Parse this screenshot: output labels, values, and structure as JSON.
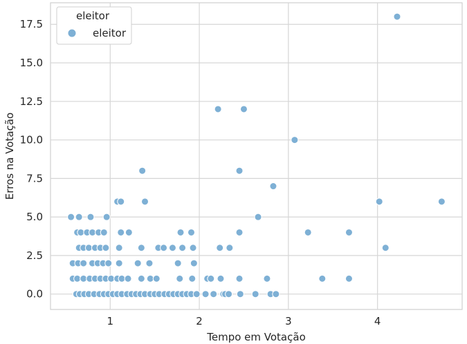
{
  "chart_data": {
    "type": "scatter",
    "xlabel": "Tempo em Votação",
    "ylabel": "Erros na Votação",
    "xlim": [
      0.33,
      4.95
    ],
    "ylim": [
      -1.0,
      18.9
    ],
    "x_ticks": [
      1,
      2,
      3,
      4
    ],
    "x_tick_labels": [
      "1",
      "2",
      "3",
      "4"
    ],
    "y_ticks": [
      0.0,
      2.5,
      5.0,
      7.5,
      10.0,
      12.5,
      15.0,
      17.5
    ],
    "y_tick_labels": [
      "0.0",
      "2.5",
      "5.0",
      "7.5",
      "10.0",
      "12.5",
      "15.0",
      "17.5"
    ],
    "grid": true,
    "legend": {
      "title": "eleitor",
      "placement": "top-left",
      "entries": [
        {
          "label": "eleitor",
          "color": "#7eb0d5"
        }
      ]
    },
    "series": [
      {
        "name": "eleitor",
        "color": "#7eb0d5",
        "points": [
          {
            "x": 0.62,
            "y": 0.0
          },
          {
            "x": 0.66,
            "y": 0.0
          },
          {
            "x": 0.71,
            "y": 0.0
          },
          {
            "x": 0.76,
            "y": 0.0
          },
          {
            "x": 0.82,
            "y": 0.0
          },
          {
            "x": 0.88,
            "y": 0.0
          },
          {
            "x": 0.93,
            "y": 0.0
          },
          {
            "x": 0.98,
            "y": 0.0
          },
          {
            "x": 1.03,
            "y": 0.0
          },
          {
            "x": 1.08,
            "y": 0.0
          },
          {
            "x": 1.13,
            "y": 0.0
          },
          {
            "x": 1.19,
            "y": 0.0
          },
          {
            "x": 1.24,
            "y": 0.0
          },
          {
            "x": 1.29,
            "y": 0.0
          },
          {
            "x": 1.34,
            "y": 0.0
          },
          {
            "x": 1.39,
            "y": 0.0
          },
          {
            "x": 1.45,
            "y": 0.0
          },
          {
            "x": 1.5,
            "y": 0.0
          },
          {
            "x": 1.55,
            "y": 0.0
          },
          {
            "x": 1.61,
            "y": 0.0
          },
          {
            "x": 1.66,
            "y": 0.0
          },
          {
            "x": 1.71,
            "y": 0.0
          },
          {
            "x": 1.76,
            "y": 0.0
          },
          {
            "x": 1.81,
            "y": 0.0
          },
          {
            "x": 1.86,
            "y": 0.0
          },
          {
            "x": 1.91,
            "y": 0.0
          },
          {
            "x": 1.97,
            "y": 0.0
          },
          {
            "x": 2.07,
            "y": 0.0
          },
          {
            "x": 2.16,
            "y": 0.0
          },
          {
            "x": 2.27,
            "y": 0.0
          },
          {
            "x": 2.29,
            "y": 0.0
          },
          {
            "x": 2.33,
            "y": 0.0
          },
          {
            "x": 2.46,
            "y": 0.0
          },
          {
            "x": 2.63,
            "y": 0.0
          },
          {
            "x": 2.8,
            "y": 0.0
          },
          {
            "x": 2.86,
            "y": 0.0
          },
          {
            "x": 0.58,
            "y": 1.0
          },
          {
            "x": 0.63,
            "y": 1.0
          },
          {
            "x": 0.7,
            "y": 1.0
          },
          {
            "x": 0.77,
            "y": 1.0
          },
          {
            "x": 0.83,
            "y": 1.0
          },
          {
            "x": 0.89,
            "y": 1.0
          },
          {
            "x": 0.95,
            "y": 1.0
          },
          {
            "x": 1.01,
            "y": 1.0
          },
          {
            "x": 1.08,
            "y": 1.0
          },
          {
            "x": 1.13,
            "y": 1.0
          },
          {
            "x": 1.2,
            "y": 1.0
          },
          {
            "x": 1.35,
            "y": 1.0
          },
          {
            "x": 1.45,
            "y": 1.0
          },
          {
            "x": 1.52,
            "y": 1.0
          },
          {
            "x": 1.78,
            "y": 1.0
          },
          {
            "x": 1.92,
            "y": 1.0
          },
          {
            "x": 2.09,
            "y": 1.0
          },
          {
            "x": 2.13,
            "y": 1.0
          },
          {
            "x": 2.24,
            "y": 1.0
          },
          {
            "x": 2.45,
            "y": 1.0
          },
          {
            "x": 2.76,
            "y": 1.0
          },
          {
            "x": 3.38,
            "y": 1.0
          },
          {
            "x": 3.68,
            "y": 1.0
          },
          {
            "x": 0.58,
            "y": 2.0
          },
          {
            "x": 0.64,
            "y": 2.0
          },
          {
            "x": 0.7,
            "y": 2.0
          },
          {
            "x": 0.8,
            "y": 2.0
          },
          {
            "x": 0.86,
            "y": 2.0
          },
          {
            "x": 0.92,
            "y": 2.0
          },
          {
            "x": 0.98,
            "y": 2.0
          },
          {
            "x": 1.1,
            "y": 2.0
          },
          {
            "x": 1.31,
            "y": 2.0
          },
          {
            "x": 1.44,
            "y": 2.0
          },
          {
            "x": 1.76,
            "y": 2.0
          },
          {
            "x": 1.94,
            "y": 2.0
          },
          {
            "x": 0.65,
            "y": 3.0
          },
          {
            "x": 0.7,
            "y": 3.0
          },
          {
            "x": 0.76,
            "y": 3.0
          },
          {
            "x": 0.83,
            "y": 3.0
          },
          {
            "x": 0.89,
            "y": 3.0
          },
          {
            "x": 0.95,
            "y": 3.0
          },
          {
            "x": 1.1,
            "y": 3.0
          },
          {
            "x": 1.35,
            "y": 3.0
          },
          {
            "x": 1.54,
            "y": 3.0
          },
          {
            "x": 1.6,
            "y": 3.0
          },
          {
            "x": 1.7,
            "y": 3.0
          },
          {
            "x": 1.81,
            "y": 3.0
          },
          {
            "x": 1.93,
            "y": 3.0
          },
          {
            "x": 2.23,
            "y": 3.0
          },
          {
            "x": 2.34,
            "y": 3.0
          },
          {
            "x": 4.09,
            "y": 3.0
          },
          {
            "x": 0.63,
            "y": 4.0
          },
          {
            "x": 0.67,
            "y": 4.0
          },
          {
            "x": 0.74,
            "y": 4.0
          },
          {
            "x": 0.8,
            "y": 4.0
          },
          {
            "x": 0.87,
            "y": 4.0
          },
          {
            "x": 0.93,
            "y": 4.0
          },
          {
            "x": 1.12,
            "y": 4.0
          },
          {
            "x": 1.21,
            "y": 4.0
          },
          {
            "x": 1.79,
            "y": 4.0
          },
          {
            "x": 1.91,
            "y": 4.0
          },
          {
            "x": 2.45,
            "y": 4.0
          },
          {
            "x": 3.22,
            "y": 4.0
          },
          {
            "x": 3.68,
            "y": 4.0
          },
          {
            "x": 0.56,
            "y": 5.0
          },
          {
            "x": 0.65,
            "y": 5.0
          },
          {
            "x": 0.78,
            "y": 5.0
          },
          {
            "x": 0.96,
            "y": 5.0
          },
          {
            "x": 2.66,
            "y": 5.0
          },
          {
            "x": 1.08,
            "y": 6.0
          },
          {
            "x": 1.12,
            "y": 6.0
          },
          {
            "x": 1.39,
            "y": 6.0
          },
          {
            "x": 4.02,
            "y": 6.0
          },
          {
            "x": 4.72,
            "y": 6.0
          },
          {
            "x": 2.83,
            "y": 7.0
          },
          {
            "x": 1.36,
            "y": 8.0
          },
          {
            "x": 2.45,
            "y": 8.0
          },
          {
            "x": 3.07,
            "y": 10.0
          },
          {
            "x": 2.21,
            "y": 12.0
          },
          {
            "x": 2.5,
            "y": 12.0
          },
          {
            "x": 4.22,
            "y": 18.0
          }
        ]
      }
    ]
  }
}
